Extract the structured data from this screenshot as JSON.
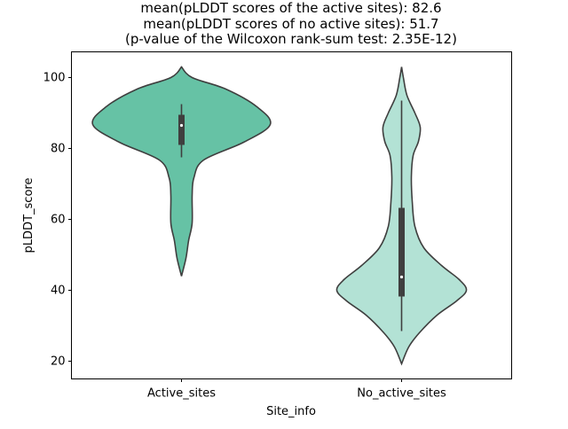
{
  "chart_data": {
    "type": "violin",
    "title_lines": [
      "mean(pLDDT scores of the active sites): 82.6",
      "mean(pLDDT scores of no active sites): 51.7",
      "(p-value of the Wilcoxon rank-sum test: 2.35E-12)"
    ],
    "xlabel": "Site_info",
    "ylabel": "pLDDT_score",
    "ylim": [
      15,
      107.25
    ],
    "yticks": [
      20,
      40,
      60,
      80,
      100
    ],
    "grid": false,
    "categories": [
      "Active_sites",
      "No_active_sites"
    ],
    "colors": [
      "#66c2a5",
      "#b3e2d5"
    ],
    "series": [
      {
        "name": "Active_sites",
        "mean": 82.6,
        "min": 44,
        "max": 103,
        "whisker_low": 77.5,
        "q1": 81,
        "median": 86.5,
        "q3": 89.5,
        "whisker_high": 92.5,
        "density": [
          [
            103,
            0
          ],
          [
            100,
            0.12
          ],
          [
            96.75,
            0.5
          ],
          [
            91.75,
            0.85
          ],
          [
            86.75,
            1.0
          ],
          [
            81.75,
            0.7
          ],
          [
            76.75,
            0.25
          ],
          [
            71.75,
            0.14
          ],
          [
            66.75,
            0.12
          ],
          [
            59,
            0.12
          ],
          [
            54,
            0.08
          ],
          [
            49,
            0.05
          ],
          [
            44,
            0
          ]
        ]
      },
      {
        "name": "No_active_sites",
        "mean": 51.7,
        "min": 19.25,
        "max": 103,
        "whisker_low": 28.5,
        "q1": 38.25,
        "median": 43.75,
        "q3": 63.25,
        "whisker_high": 93.5,
        "density": [
          [
            103,
            0
          ],
          [
            100,
            0.02
          ],
          [
            95,
            0.06
          ],
          [
            90,
            0.15
          ],
          [
            86,
            0.21
          ],
          [
            82,
            0.19
          ],
          [
            78,
            0.13
          ],
          [
            72,
            0.11
          ],
          [
            65,
            0.12
          ],
          [
            58,
            0.15
          ],
          [
            52,
            0.25
          ],
          [
            47,
            0.45
          ],
          [
            43,
            0.65
          ],
          [
            40,
            0.73
          ],
          [
            37,
            0.62
          ],
          [
            33,
            0.4
          ],
          [
            28,
            0.2
          ],
          [
            24,
            0.08
          ],
          [
            19.25,
            0
          ]
        ]
      }
    ]
  }
}
